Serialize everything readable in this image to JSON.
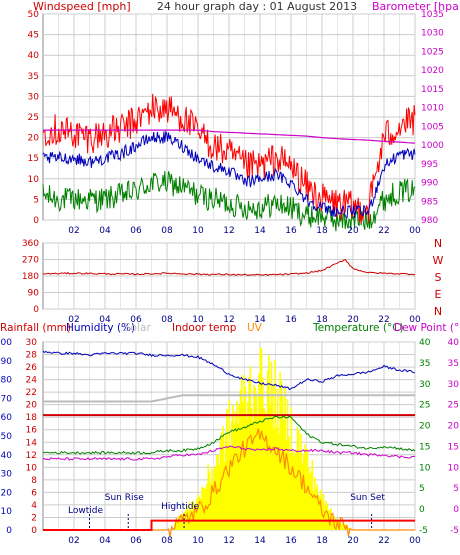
{
  "header": {
    "left_label": "Windspeed [mph]",
    "title": "24 hour graph day : 01 August 2013",
    "right_label": "Barometer [hpa]"
  },
  "colors": {
    "wind": "#ff0000",
    "gust": "#ff0000",
    "avg": "#0000bb",
    "lull": "#008000",
    "baro": "#cc00cc",
    "dir": "#cc0000",
    "rain": "#ff0000",
    "humidity": "#0000bb",
    "solar": "#bbbbbb",
    "indoor": "#cc0000",
    "uv": "#ff8c00",
    "temp": "#008000",
    "dew": "#cc00cc",
    "solarfill": "#ffff00",
    "grid": "#cccccc"
  },
  "time_ticks": [
    "02",
    "04",
    "06",
    "08",
    "10",
    "12",
    "14",
    "16",
    "18",
    "20",
    "22",
    "00"
  ],
  "panel1": {
    "left_ticks": [
      "0",
      "5",
      "10",
      "15",
      "20",
      "25",
      "30",
      "35",
      "40",
      "45",
      "50"
    ],
    "right_ticks": [
      "980",
      "985",
      "990",
      "995",
      "1000",
      "1005",
      "1010",
      "1015",
      "1020",
      "1025",
      "1030",
      "1035"
    ]
  },
  "panel2": {
    "left_ticks": [
      "0",
      "90",
      "180",
      "270",
      "360"
    ],
    "compass": [
      "N",
      "W",
      "S",
      "E",
      "N"
    ]
  },
  "panel3": {
    "legend": {
      "rain": "Rainfall (mm)",
      "humidity": "Humidity (%)",
      "solar": "Solar",
      "indoor": "Indoor temp",
      "uv": "UV",
      "temp": "Temperature (°C)",
      "dew": "Dew Point (°C)"
    },
    "hum_ticks": [
      "0",
      "10",
      "20",
      "30",
      "40",
      "50",
      "60",
      "70",
      "80",
      "90",
      "100"
    ],
    "rain_ticks": [
      "0",
      "2",
      "4",
      "6",
      "8",
      "10",
      "12",
      "14",
      "16",
      "18",
      "20",
      "22",
      "24",
      "26",
      "28",
      "30"
    ],
    "temp_ticks": [
      "-5",
      "0",
      "5",
      "10",
      "15",
      "20",
      "25",
      "30",
      "35",
      "40"
    ],
    "events": [
      {
        "label": "Lowtide",
        "hour": 3.0
      },
      {
        "label": "Sun Rise",
        "hour": 5.5
      },
      {
        "label": "Hightide",
        "hour": 9.1
      },
      {
        "label": "Sun Set",
        "hour": 21.2
      }
    ]
  },
  "chart_data": [
    {
      "type": "line",
      "title": "24 hour graph day : 01 August 2013",
      "xlabel": "",
      "ylabel": "Windspeed [mph]",
      "y2label": "Barometer [hpa]",
      "x": [
        0,
        1,
        2,
        3,
        4,
        5,
        6,
        7,
        8,
        9,
        10,
        11,
        12,
        13,
        14,
        15,
        16,
        17,
        18,
        19,
        20,
        21,
        22,
        23,
        24
      ],
      "ylim": [
        0,
        50
      ],
      "y2lim": [
        980,
        1035
      ],
      "series": [
        {
          "name": "Windspeed gust",
          "values": [
            22,
            22,
            21,
            20,
            21,
            22,
            24,
            27,
            27,
            25,
            21,
            18,
            16,
            13,
            13,
            15,
            13,
            8,
            5,
            4,
            3,
            3,
            20,
            23,
            24
          ]
        },
        {
          "name": "Windspeed average",
          "values": [
            15,
            15,
            15,
            14,
            15,
            16,
            18,
            20,
            20,
            18,
            15,
            13,
            12,
            9,
            10,
            11,
            9,
            5,
            3,
            2,
            2,
            2,
            13,
            16,
            16
          ]
        },
        {
          "name": "Windspeed lull",
          "values": [
            6,
            5,
            5,
            5,
            5,
            6,
            7,
            9,
            9,
            8,
            6,
            5,
            4,
            3,
            3,
            4,
            3,
            1,
            1,
            0,
            0,
            0,
            5,
            7,
            7
          ]
        },
        {
          "name": "Barometer",
          "values": [
            1004,
            1004,
            1004,
            1004,
            1004,
            1004,
            1004,
            1004,
            1004,
            1004,
            1004,
            1003.6,
            1003.4,
            1003.2,
            1003,
            1002.8,
            1002.6,
            1002.4,
            1002,
            1001.7,
            1001.5,
            1001.3,
            1001,
            1000.8,
            1000.5
          ]
        }
      ]
    },
    {
      "type": "line",
      "ylabel": "",
      "x": [
        0,
        2,
        4,
        6,
        8,
        10,
        12,
        14,
        16,
        17,
        18,
        19,
        19.5,
        20,
        21,
        22,
        24
      ],
      "ylim": [
        0,
        360
      ],
      "series": [
        {
          "name": "Wind direction",
          "values": [
            192,
            195,
            192,
            190,
            195,
            190,
            188,
            185,
            190,
            196,
            210,
            250,
            270,
            220,
            198,
            195,
            190
          ]
        }
      ]
    },
    {
      "type": "line",
      "x": [
        0,
        1,
        2,
        3,
        4,
        5,
        6,
        7,
        8,
        9,
        10,
        11,
        12,
        13,
        14,
        15,
        16,
        17,
        18,
        19,
        20,
        21,
        22,
        23,
        24
      ],
      "series": [
        {
          "name": "Humidity (%)",
          "values": [
            95,
            94,
            94,
            93,
            94,
            94,
            94,
            93,
            93,
            93,
            92,
            88,
            83,
            80,
            78,
            77,
            75,
            80,
            79,
            82,
            83,
            84,
            87,
            85,
            84
          ],
          "ylim": [
            0,
            100
          ]
        },
        {
          "name": "Solar",
          "values": [
            20.5,
            20.5,
            20.5,
            20.5,
            20.5,
            20.5,
            20.5,
            20.5,
            21,
            21.5,
            21.5,
            21.5,
            21.5,
            21.5,
            21.5,
            21.5,
            21.5,
            21.5,
            21.5,
            21.5,
            21.5,
            21.5,
            21.5,
            21.5,
            21.5
          ],
          "ylim": [
            0,
            30
          ]
        },
        {
          "name": "Indoor temp",
          "values": [
            22.5,
            22.5,
            22.5,
            22.5,
            22.5,
            22.5,
            22.5,
            22.5,
            22.5,
            22.5,
            22.5,
            22.5,
            22.5,
            22.5,
            22.5,
            22.5,
            22.5,
            22.5,
            22.5,
            22.5,
            22.5,
            22.5,
            22.5,
            22.5,
            22.5
          ],
          "ylim": [
            -5,
            40
          ]
        },
        {
          "name": "Temperature (°C)",
          "values": [
            13.5,
            13.5,
            13.5,
            13.5,
            13.5,
            13.5,
            13.5,
            13.5,
            14,
            14,
            14.5,
            16,
            18.5,
            19.5,
            21,
            22,
            22,
            18,
            16,
            15.5,
            15,
            14.5,
            15,
            14.5,
            14
          ],
          "ylim": [
            -5,
            40
          ]
        },
        {
          "name": "Dew Point (°C)",
          "values": [
            12,
            12,
            12,
            12,
            12,
            12,
            12,
            12,
            12.5,
            13,
            13,
            14,
            15,
            14.5,
            14,
            14.5,
            14,
            14,
            14,
            13.5,
            13.5,
            13,
            13,
            12.5,
            12.5
          ],
          "ylim": [
            -5,
            40
          ]
        },
        {
          "name": "UV",
          "values": [
            0,
            0,
            0,
            0,
            0,
            0,
            0,
            0,
            0,
            1.5,
            3,
            6,
            10,
            13,
            15,
            13,
            10,
            7,
            3,
            1,
            0,
            0,
            0,
            0,
            0
          ],
          "ylim": [
            0,
            30
          ]
        },
        {
          "name": "Rainfall (mm)",
          "values": [
            0,
            0,
            0,
            0,
            0,
            0,
            0,
            1.5,
            1.5,
            1.5,
            1.5,
            1.5,
            1.5,
            1.5,
            1.5,
            1.5,
            1.5,
            1.5,
            1.5,
            1.5,
            1.5,
            1.5,
            1.5,
            1.5,
            1.5
          ],
          "ylim": [
            0,
            30
          ]
        }
      ]
    }
  ]
}
